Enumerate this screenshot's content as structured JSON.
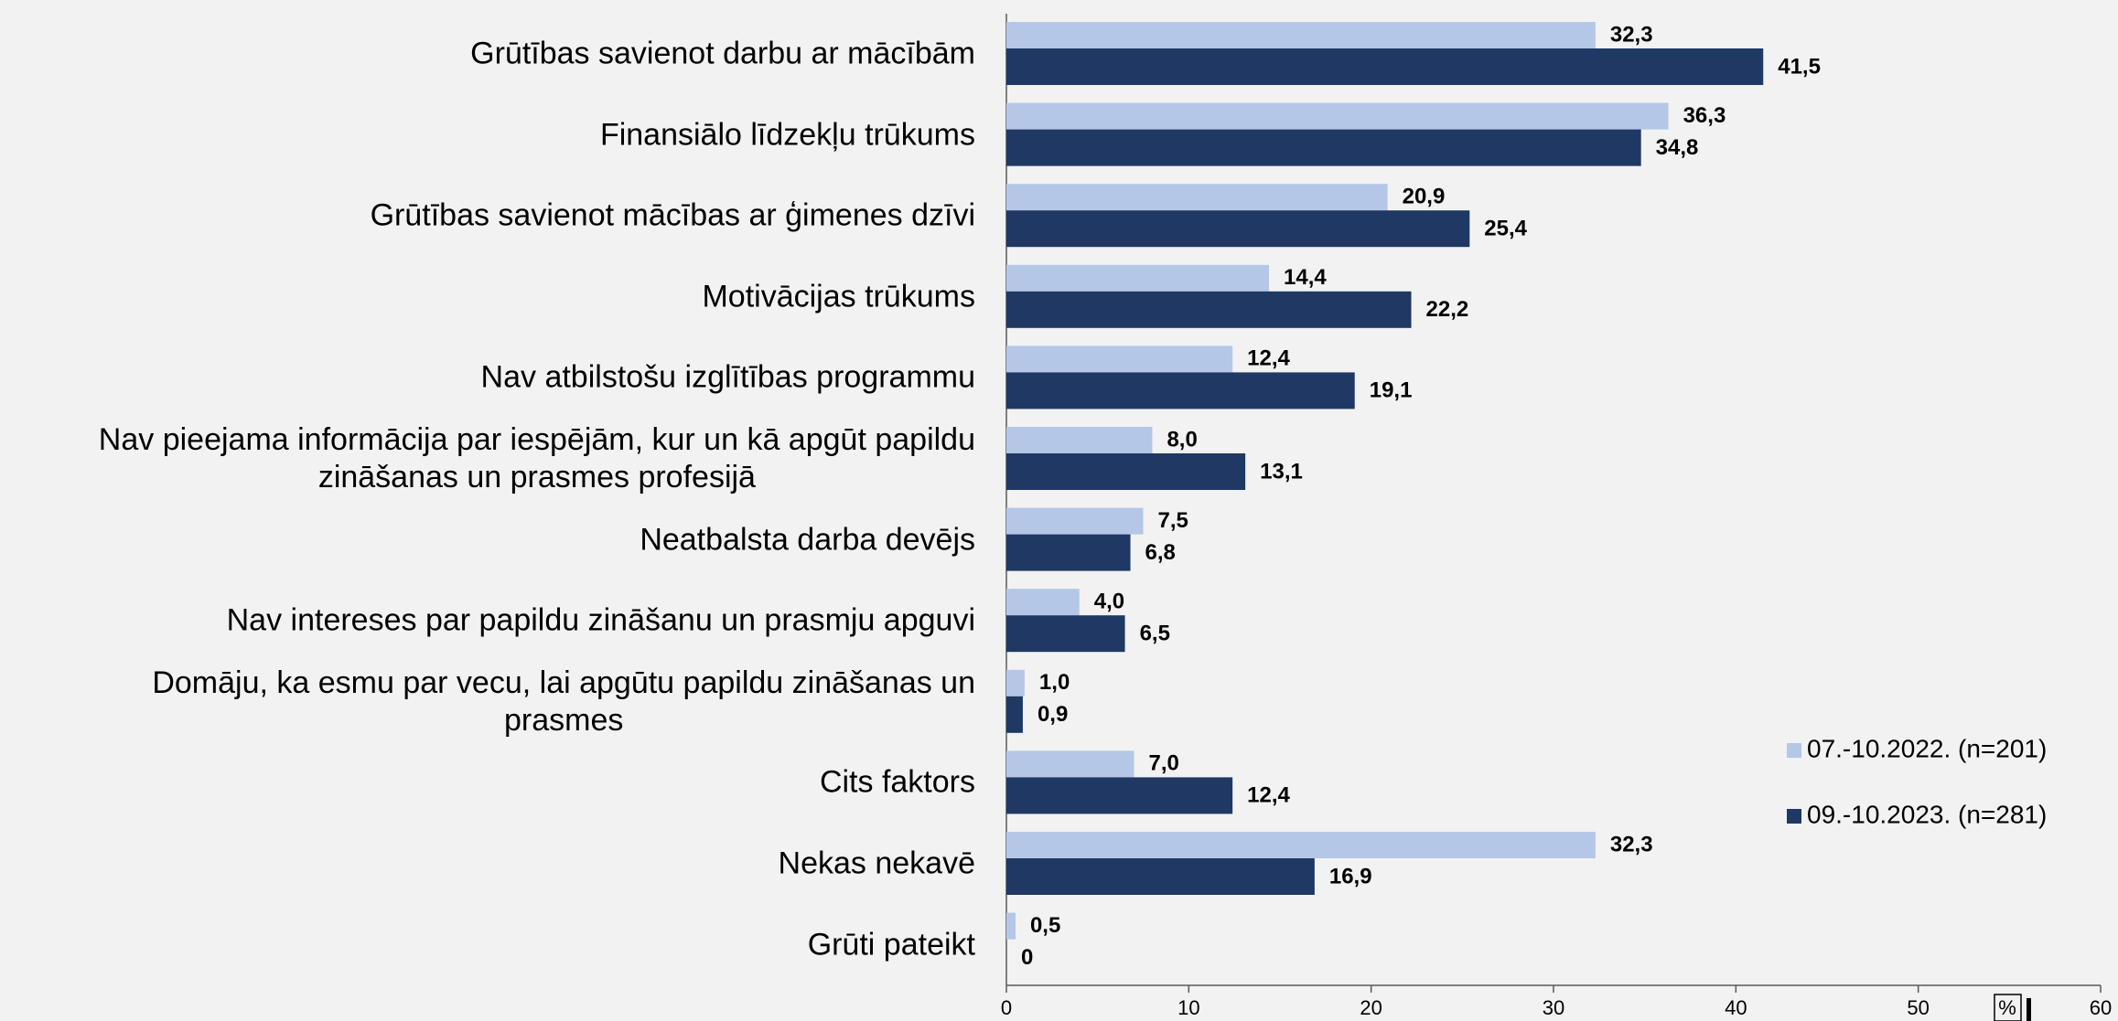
{
  "chart_data": {
    "type": "barh",
    "categories": [
      "Grūtības savienot darbu ar mācībām",
      "Finansiālo līdzekļu trūkums",
      "Grūtības savienot mācības ar ģimenes dzīvi",
      "Motivācijas trūkums",
      "Nav atbilstošu izglītības programmu",
      "Nav pieejama informācija par iespējām, kur un kā apgūt papildu\nzināšanas un prasmes profesijā",
      "Neatbalsta darba devējs",
      "Nav intereses par papildu zināšanu un prasmju apguvi",
      "Domāju, ka esmu par vecu, lai apgūtu papildu zināšanas un\nprasmes",
      "Cits faktors",
      "Nekas nekavē",
      "Grūti pateikt"
    ],
    "series": [
      {
        "name": "07.-10.2022. (n=201)",
        "color": "#b4c7e7",
        "values": [
          32.3,
          36.3,
          20.9,
          14.4,
          12.4,
          8.0,
          7.5,
          4.0,
          1.0,
          7.0,
          32.3,
          0.5
        ],
        "value_labels": [
          "32,3",
          "36,3",
          "20,9",
          "14,4",
          "12,4",
          "8,0",
          "7,5",
          "4,0",
          "1,0",
          "7,0",
          "32,3",
          "0,5"
        ]
      },
      {
        "name": "09.-10.2023. (n=281)",
        "color": "#1f3864",
        "values": [
          41.5,
          34.8,
          25.4,
          22.2,
          19.1,
          13.1,
          6.8,
          6.5,
          0.9,
          12.4,
          16.9,
          0
        ],
        "value_labels": [
          "41,5",
          "34,8",
          "25,4",
          "22,2",
          "19,1",
          "13,1",
          "6,8",
          "6,5",
          "0,9",
          "12,4",
          "16,9",
          "0"
        ]
      }
    ],
    "x_label": "%",
    "xlim": [
      0,
      60
    ],
    "xticks": [
      0,
      10,
      20,
      30,
      40,
      50,
      60
    ],
    "legend": "right"
  }
}
